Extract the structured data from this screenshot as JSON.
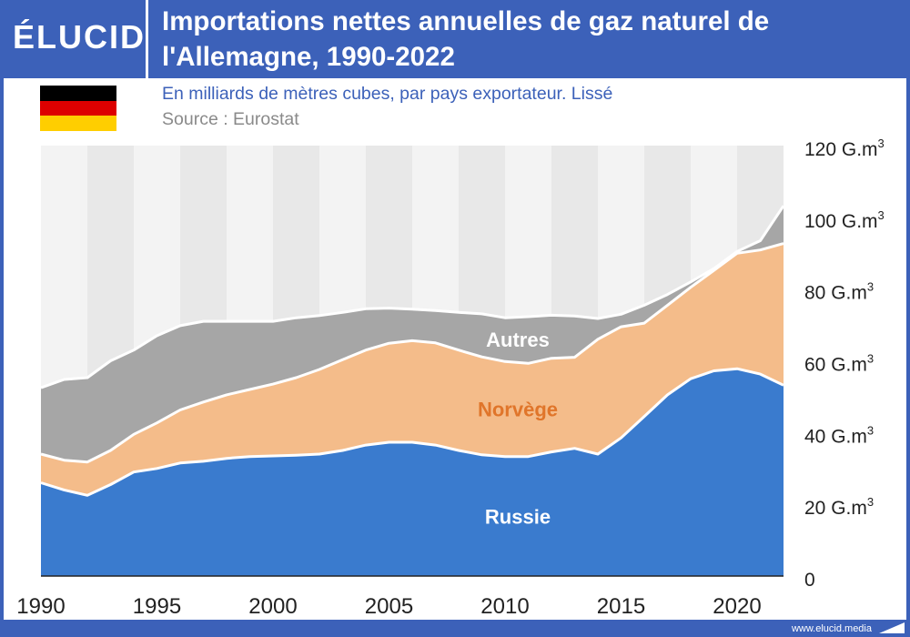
{
  "brand": {
    "name": "ÉLUCID",
    "url": "www.elucid.media"
  },
  "header": {
    "title_line1": "Importations nettes annuelles de gaz naturel de",
    "title_line2": "l'Allemagne, 1990-2022"
  },
  "subtitle": "En milliards de mètres cubes, par pays exportateur. Lissé",
  "source": "Source : Eurostat",
  "flag": {
    "name": "germany-flag",
    "colors": [
      "#000000",
      "#dd0000",
      "#ffce00"
    ]
  },
  "colors": {
    "header": "#3c61b9",
    "band_light": "#f3f3f3",
    "band_dark": "#e8e8e8"
  },
  "chart_data": {
    "type": "area",
    "stacked": true,
    "title": "Importations nettes annuelles de gaz naturel de l'Allemagne, 1990-2022",
    "ylabel": "G.m3",
    "unit_base": "G.m",
    "unit_exp": "3",
    "ylim": [
      0,
      120
    ],
    "yticks": [
      0,
      20,
      40,
      60,
      80,
      100,
      120
    ],
    "xlim": [
      1990,
      2022
    ],
    "xticks": [
      1990,
      1995,
      2000,
      2005,
      2010,
      2015,
      2020
    ],
    "x": [
      1990,
      1991,
      1992,
      1993,
      1994,
      1995,
      1996,
      1997,
      1998,
      1999,
      2000,
      2001,
      2002,
      2003,
      2004,
      2005,
      2006,
      2007,
      2008,
      2009,
      2010,
      2011,
      2012,
      2013,
      2014,
      2015,
      2016,
      2017,
      2018,
      2019,
      2020,
      2021,
      2022
    ],
    "series": [
      {
        "name": "Russie",
        "label": "Russie",
        "color": "#3a7bce",
        "label_color": "#ffffff",
        "values": [
          26,
          24,
          22.5,
          25.5,
          29,
          30,
          31.5,
          32,
          32.8,
          33.3,
          33.5,
          33.7,
          34,
          35,
          36.5,
          37.3,
          37.3,
          36.5,
          35,
          33.8,
          33.3,
          33.3,
          34.6,
          35.6,
          34,
          38.5,
          44.5,
          50.5,
          55,
          57.2,
          57.8,
          56.3,
          53.2
        ]
      },
      {
        "name": "Norvège",
        "label": "Norvège",
        "color": "#f4bc8a",
        "label_color": "#e0752a",
        "values": [
          8,
          8.3,
          9.3,
          9.5,
          10.5,
          12.7,
          14.8,
          16.5,
          17.7,
          18.7,
          20,
          21.6,
          23.6,
          25.3,
          26.5,
          27.6,
          28.3,
          28.5,
          28,
          27.3,
          26.5,
          26,
          26.1,
          25.4,
          32,
          31,
          26,
          25,
          25.5,
          28,
          32.2,
          34.6,
          39.5
        ]
      },
      {
        "name": "Autres",
        "label": "Autres",
        "color": "#a6a6a6",
        "label_color": "#ffffff",
        "values": [
          18.5,
          22.5,
          23.5,
          25,
          23.5,
          24.3,
          23.5,
          22.5,
          20.5,
          19,
          17.5,
          16.7,
          15,
          13.2,
          11.5,
          9.8,
          8.8,
          9,
          10.5,
          12,
          12.2,
          13,
          12,
          11.5,
          5.8,
          3.5,
          5,
          3,
          1.5,
          0.5,
          0.5,
          2.6,
          10.5
        ]
      }
    ]
  }
}
